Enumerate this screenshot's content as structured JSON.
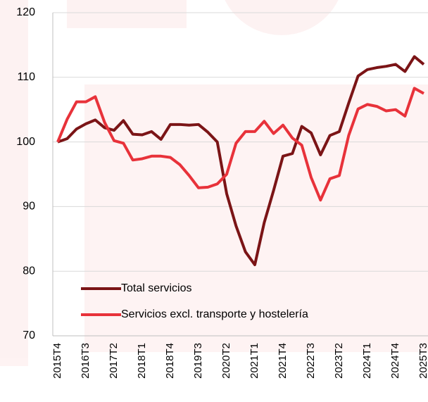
{
  "chart_data": {
    "type": "line",
    "categories": [
      "2015T4",
      null,
      null,
      "2016T3",
      null,
      null,
      "2017T2",
      null,
      null,
      "2018T1",
      null,
      null,
      "2018T4",
      null,
      null,
      "2019T3",
      null,
      null,
      "2020T2",
      null,
      null,
      "2021T1",
      null,
      null,
      "2021T4",
      null,
      null,
      "2022T3",
      null,
      null,
      "2023T2",
      null,
      null,
      "2024T1",
      null,
      null,
      "2024T4",
      null,
      null,
      "2025T3"
    ],
    "series": [
      {
        "name": "Total servicios",
        "color": "#7b1416",
        "values": [
          100,
          100.5,
          102,
          102.8,
          103.4,
          102.2,
          101.8,
          103.3,
          101.2,
          101.1,
          101.6,
          100.4,
          102.7,
          102.7,
          102.6,
          102.7,
          101.5,
          100,
          92,
          87,
          83,
          81,
          87.5,
          92.5,
          97.8,
          98.2,
          102.4,
          101.4,
          98,
          101,
          101.6,
          106,
          110.2,
          111.2,
          111.5,
          111.7,
          112,
          110.9,
          113.2,
          112
        ]
      },
      {
        "name": "Servicios excl. transporte y hostelería",
        "color": "#e8323a",
        "values": [
          100,
          103.5,
          106.2,
          106.2,
          107,
          103,
          100.2,
          99.8,
          97.2,
          97.4,
          97.8,
          97.8,
          97.6,
          96.5,
          94.8,
          92.9,
          93,
          93.5,
          95,
          99.8,
          101.6,
          101.6,
          103.2,
          101.3,
          102.6,
          100.6,
          99.5,
          94.5,
          91,
          94.3,
          94.8,
          101,
          105.1,
          105.8,
          105.5,
          104.8,
          105,
          104,
          108.3,
          107.5
        ]
      }
    ],
    "ylim": [
      70,
      120
    ],
    "yticks": [
      70,
      80,
      90,
      100,
      110,
      120
    ],
    "grid": true
  }
}
